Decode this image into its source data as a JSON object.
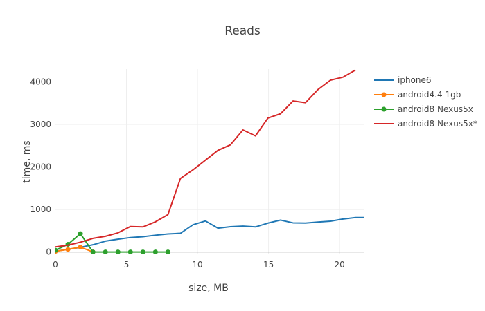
{
  "chart_data": {
    "type": "line",
    "title": "Reads",
    "xlabel": "size, MB",
    "ylabel": "time, ms",
    "xlim": [
      0,
      21.7
    ],
    "ylim": [
      -55,
      4300
    ],
    "x_ticks": [
      0,
      5,
      10,
      15,
      20
    ],
    "y_ticks": [
      0,
      1000,
      2000,
      3000,
      4000
    ],
    "grid": true,
    "legend_position": "top-right",
    "series": [
      {
        "name": "iphone6",
        "color": "#1f77b4",
        "markers": false,
        "x": [
          0,
          0.88,
          1.76,
          2.64,
          3.52,
          4.4,
          5.28,
          6.16,
          7.04,
          7.92,
          8.8,
          9.68,
          10.56,
          11.44,
          12.32,
          13.2,
          14.08,
          14.96,
          15.84,
          16.72,
          17.6,
          18.48,
          19.36,
          20.24,
          21.12,
          21.7
        ],
        "y": [
          20,
          60,
          110,
          170,
          255,
          300,
          340,
          360,
          395,
          425,
          440,
          640,
          730,
          560,
          595,
          610,
          590,
          680,
          750,
          685,
          680,
          705,
          725,
          775,
          810,
          810
        ]
      },
      {
        "name": "android4.4 1gb",
        "color": "#ff7f0e",
        "markers": true,
        "x": [
          0,
          0.88,
          1.76,
          2.64
        ],
        "y": [
          15,
          60,
          115,
          0
        ]
      },
      {
        "name": "android8 Nexus5x",
        "color": "#2ca02c",
        "markers": true,
        "x": [
          0,
          0.88,
          1.76,
          2.64,
          3.52,
          4.4,
          5.28,
          6.16,
          7.04,
          7.92
        ],
        "y": [
          40,
          180,
          430,
          0,
          0,
          0,
          0,
          0,
          0,
          0
        ]
      },
      {
        "name": "android8 Nexus5x*",
        "color": "#d62728",
        "markers": false,
        "x": [
          0,
          0.88,
          1.76,
          2.64,
          3.52,
          4.4,
          5.28,
          6.16,
          7.04,
          7.92,
          8.8,
          9.68,
          10.56,
          11.44,
          12.32,
          13.2,
          14.08,
          14.96,
          15.84,
          16.72,
          17.6,
          18.48,
          19.36,
          20.24,
          21.12
        ],
        "y": [
          120,
          160,
          230,
          320,
          370,
          450,
          600,
          590,
          710,
          880,
          1730,
          1930,
          2160,
          2390,
          2520,
          2870,
          2730,
          3150,
          3250,
          3550,
          3510,
          3820,
          4040,
          4110,
          4280
        ]
      }
    ]
  }
}
